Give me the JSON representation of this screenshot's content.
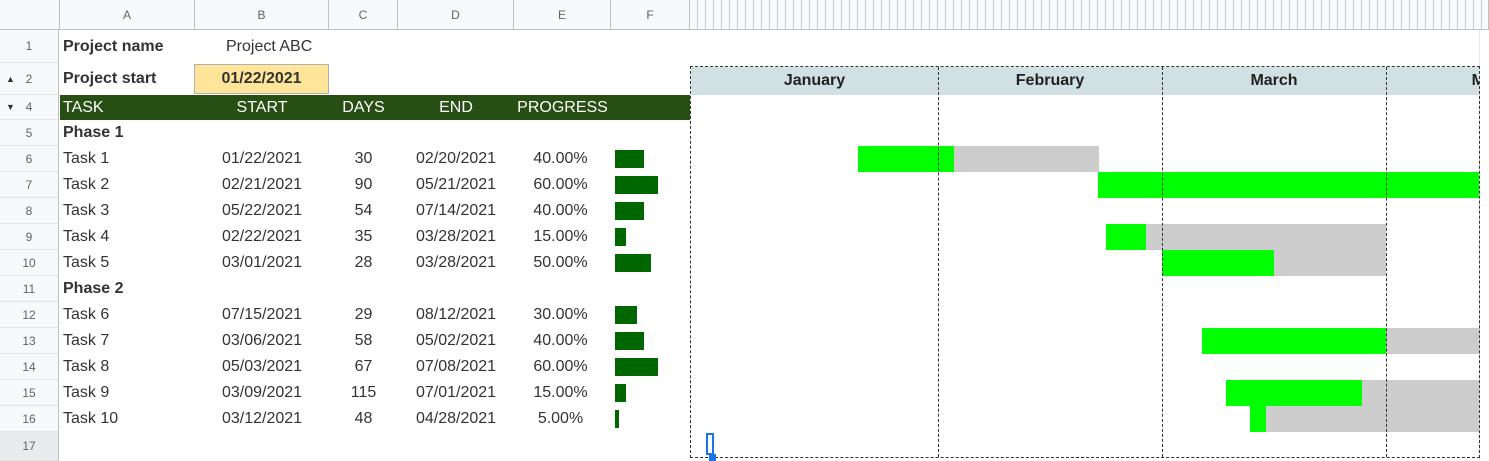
{
  "columns": [
    "A",
    "B",
    "C",
    "D",
    "E",
    "F"
  ],
  "rows": [
    "1",
    "2",
    "4",
    "5",
    "6",
    "7",
    "8",
    "9",
    "10",
    "11",
    "12",
    "13",
    "14",
    "15",
    "16",
    "17"
  ],
  "project": {
    "name_label": "Project name",
    "name_value": "Project ABC",
    "start_label": "Project start",
    "start_value": "01/22/2021"
  },
  "table_headers": {
    "task": "TASK",
    "start": "START",
    "days": "DAYS",
    "end": "END",
    "progress": "PROGRESS"
  },
  "phases": [
    "Phase 1",
    "Phase 2"
  ],
  "tasks": [
    {
      "name": "Task 1",
      "start": "01/22/2021",
      "days": "30",
      "end": "02/20/2021",
      "progress": "40.00%",
      "pct": 0.4
    },
    {
      "name": "Task 2",
      "start": "02/21/2021",
      "days": "90",
      "end": "05/21/2021",
      "progress": "60.00%",
      "pct": 0.6
    },
    {
      "name": "Task 3",
      "start": "05/22/2021",
      "days": "54",
      "end": "07/14/2021",
      "progress": "40.00%",
      "pct": 0.4
    },
    {
      "name": "Task 4",
      "start": "02/22/2021",
      "days": "35",
      "end": "03/28/2021",
      "progress": "15.00%",
      "pct": 0.15
    },
    {
      "name": "Task 5",
      "start": "03/01/2021",
      "days": "28",
      "end": "03/28/2021",
      "progress": "50.00%",
      "pct": 0.5
    },
    {
      "name": "Task 6",
      "start": "07/15/2021",
      "days": "29",
      "end": "08/12/2021",
      "progress": "30.00%",
      "pct": 0.3
    },
    {
      "name": "Task 7",
      "start": "03/06/2021",
      "days": "58",
      "end": "05/02/2021",
      "progress": "40.00%",
      "pct": 0.4
    },
    {
      "name": "Task 8",
      "start": "05/03/2021",
      "days": "67",
      "end": "07/08/2021",
      "progress": "60.00%",
      "pct": 0.6
    },
    {
      "name": "Task 9",
      "start": "03/09/2021",
      "days": "115",
      "end": "07/01/2021",
      "progress": "15.00%",
      "pct": 0.15
    },
    {
      "name": "Task 10",
      "start": "03/12/2021",
      "days": "48",
      "end": "04/28/2021",
      "progress": "5.00%",
      "pct": 0.05
    }
  ],
  "months": [
    "January",
    "February",
    "March",
    "M"
  ],
  "colors": {
    "header_green": "#274e13",
    "month_bg": "#d0e0e3",
    "bar_done": "#00ff00",
    "bar_remaining": "#cccccc",
    "progress_bar": "#006600",
    "start_cell": "#ffe599"
  }
}
